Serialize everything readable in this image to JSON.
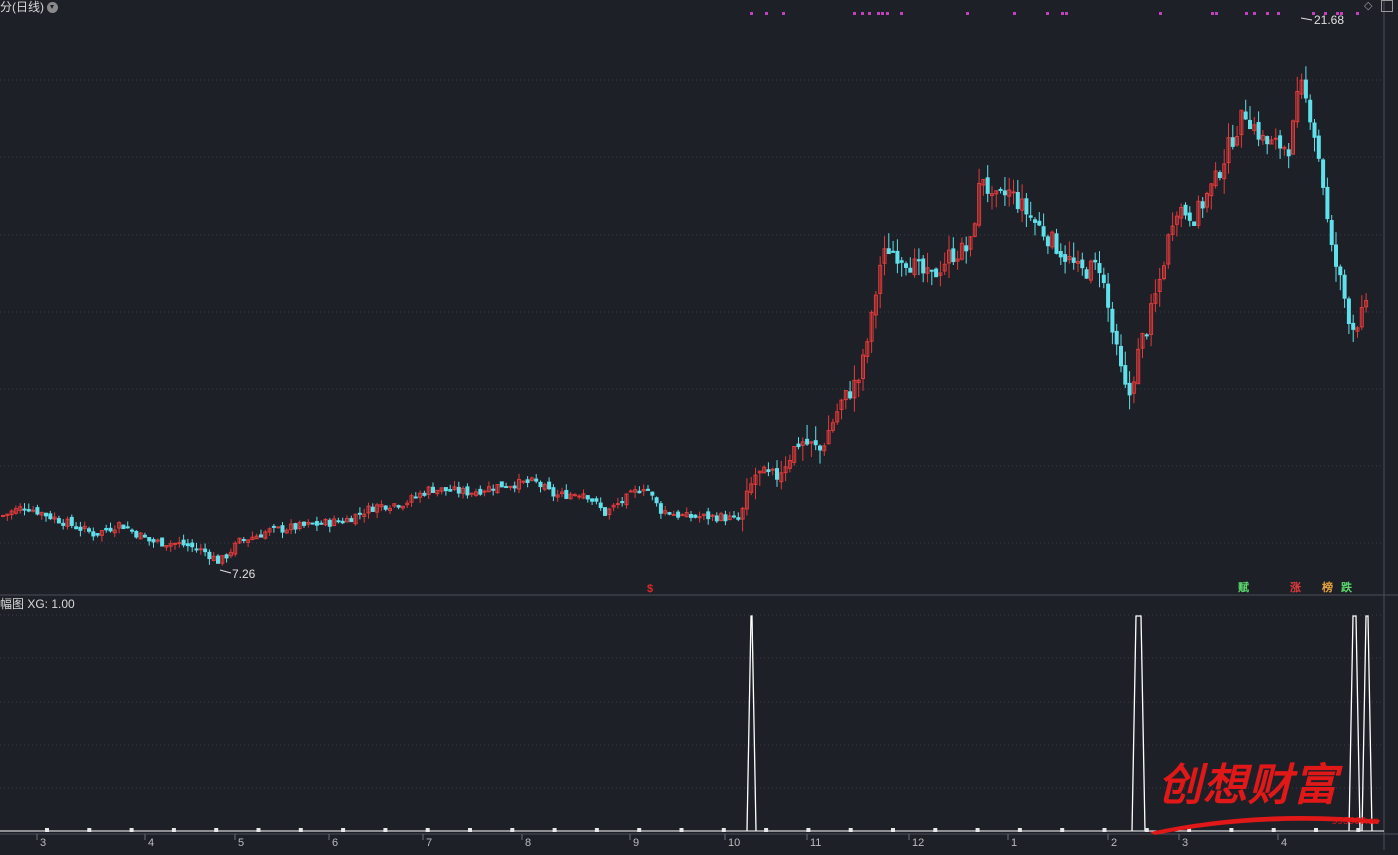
{
  "main_title": "分(日线)",
  "sub_title": "幅图 XG: 1.00",
  "labels": {
    "high": "21.68",
    "low": "7.26",
    "dollar": "$",
    "zeng": "赋",
    "zhang": "涨",
    "bang": "榜",
    "die": "跌"
  },
  "watermark": {
    "text": "创想财富",
    "url": "995666.cn"
  },
  "colors": {
    "background": "#1e2028",
    "up": "#e23a3a",
    "down": "#5fe0ea",
    "signal": "#c040c0",
    "grid": "#3a3d47",
    "indicator": "#ffffff"
  },
  "months": [
    "3",
    "4",
    "5",
    "6",
    "7",
    "8",
    "9",
    "10",
    "11",
    "12",
    "1",
    "2",
    "3",
    "4"
  ],
  "chart_data": {
    "type": "candlestick",
    "low_value": 7.26,
    "high_value": 21.68,
    "ylim": [
      6.5,
      23
    ],
    "indicator": {
      "name": "XG",
      "value": 1.0,
      "spikes_months": [
        "10",
        "2",
        "4"
      ]
    }
  }
}
